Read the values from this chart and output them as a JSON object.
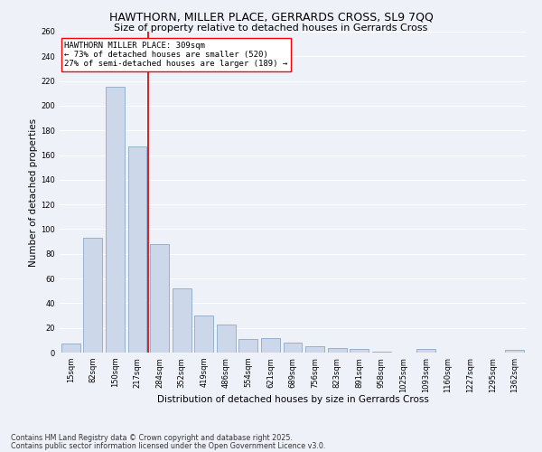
{
  "title": "HAWTHORN, MILLER PLACE, GERRARDS CROSS, SL9 7QQ",
  "subtitle": "Size of property relative to detached houses in Gerrards Cross",
  "xlabel": "Distribution of detached houses by size in Gerrards Cross",
  "ylabel": "Number of detached properties",
  "categories": [
    "15sqm",
    "82sqm",
    "150sqm",
    "217sqm",
    "284sqm",
    "352sqm",
    "419sqm",
    "486sqm",
    "554sqm",
    "621sqm",
    "689sqm",
    "756sqm",
    "823sqm",
    "891sqm",
    "958sqm",
    "1025sqm",
    "1093sqm",
    "1160sqm",
    "1227sqm",
    "1295sqm",
    "1362sqm"
  ],
  "values": [
    7,
    93,
    215,
    167,
    88,
    52,
    30,
    23,
    11,
    12,
    8,
    5,
    4,
    3,
    1,
    0,
    3,
    0,
    0,
    0,
    2
  ],
  "bar_color": "#ccd8ea",
  "bar_edge_color": "#8aaac8",
  "bar_linewidth": 0.6,
  "redline_x": 3.5,
  "annotation_text": "HAWTHORN MILLER PLACE: 309sqm\n← 73% of detached houses are smaller (520)\n27% of semi-detached houses are larger (189) →",
  "annotation_box_color": "white",
  "annotation_box_edge": "red",
  "annotation_fontsize": 6.5,
  "redline_color": "#cc0000",
  "background_color": "#eef2f8",
  "grid_color": "white",
  "title_fontsize": 9,
  "subtitle_fontsize": 8,
  "xlabel_fontsize": 7.5,
  "ylabel_fontsize": 7.5,
  "tick_fontsize": 6,
  "footer_line1": "Contains HM Land Registry data © Crown copyright and database right 2025.",
  "footer_line2": "Contains public sector information licensed under the Open Government Licence v3.0.",
  "footer_fontsize": 5.8,
  "ylim": [
    0,
    260
  ],
  "yticks": [
    0,
    20,
    40,
    60,
    80,
    100,
    120,
    140,
    160,
    180,
    200,
    220,
    240,
    260
  ]
}
